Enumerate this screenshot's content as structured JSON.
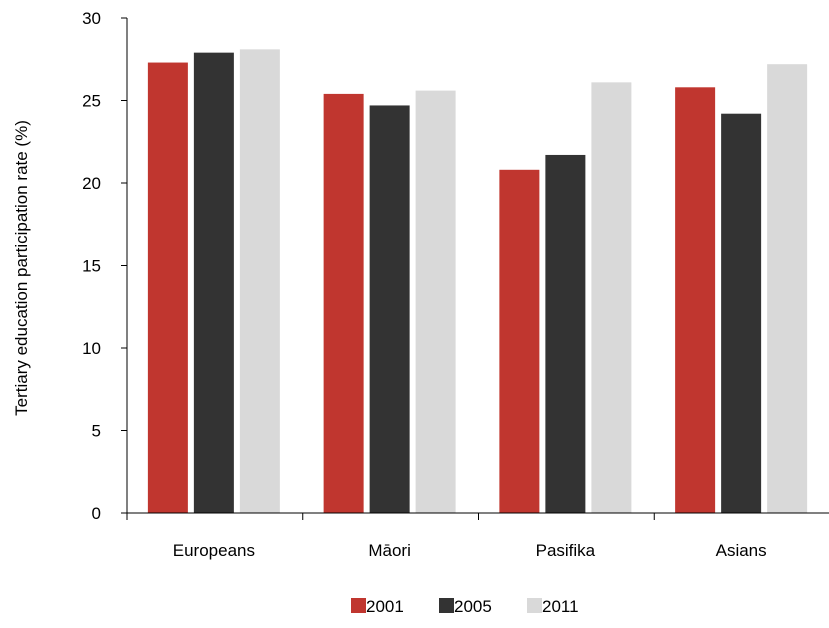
{
  "chart_data": {
    "type": "bar",
    "title": "",
    "xlabel": "",
    "ylabel": "Tertiary education participation rate (%)",
    "ylim": [
      0,
      30
    ],
    "yticks": [
      0,
      5,
      10,
      15,
      20,
      25,
      30
    ],
    "grid": false,
    "legend_position": "bottom",
    "categories": [
      "Europeans",
      "Māori",
      "Pasifika",
      "Asians"
    ],
    "series": [
      {
        "name": "2001",
        "color": "#c0362f",
        "values": [
          27.3,
          25.4,
          20.8,
          25.8
        ]
      },
      {
        "name": "2005",
        "color": "#333333",
        "values": [
          27.9,
          24.7,
          21.7,
          24.2
        ]
      },
      {
        "name": "2011",
        "color": "#d9d9d9",
        "values": [
          28.1,
          25.6,
          26.1,
          27.2
        ]
      }
    ]
  }
}
